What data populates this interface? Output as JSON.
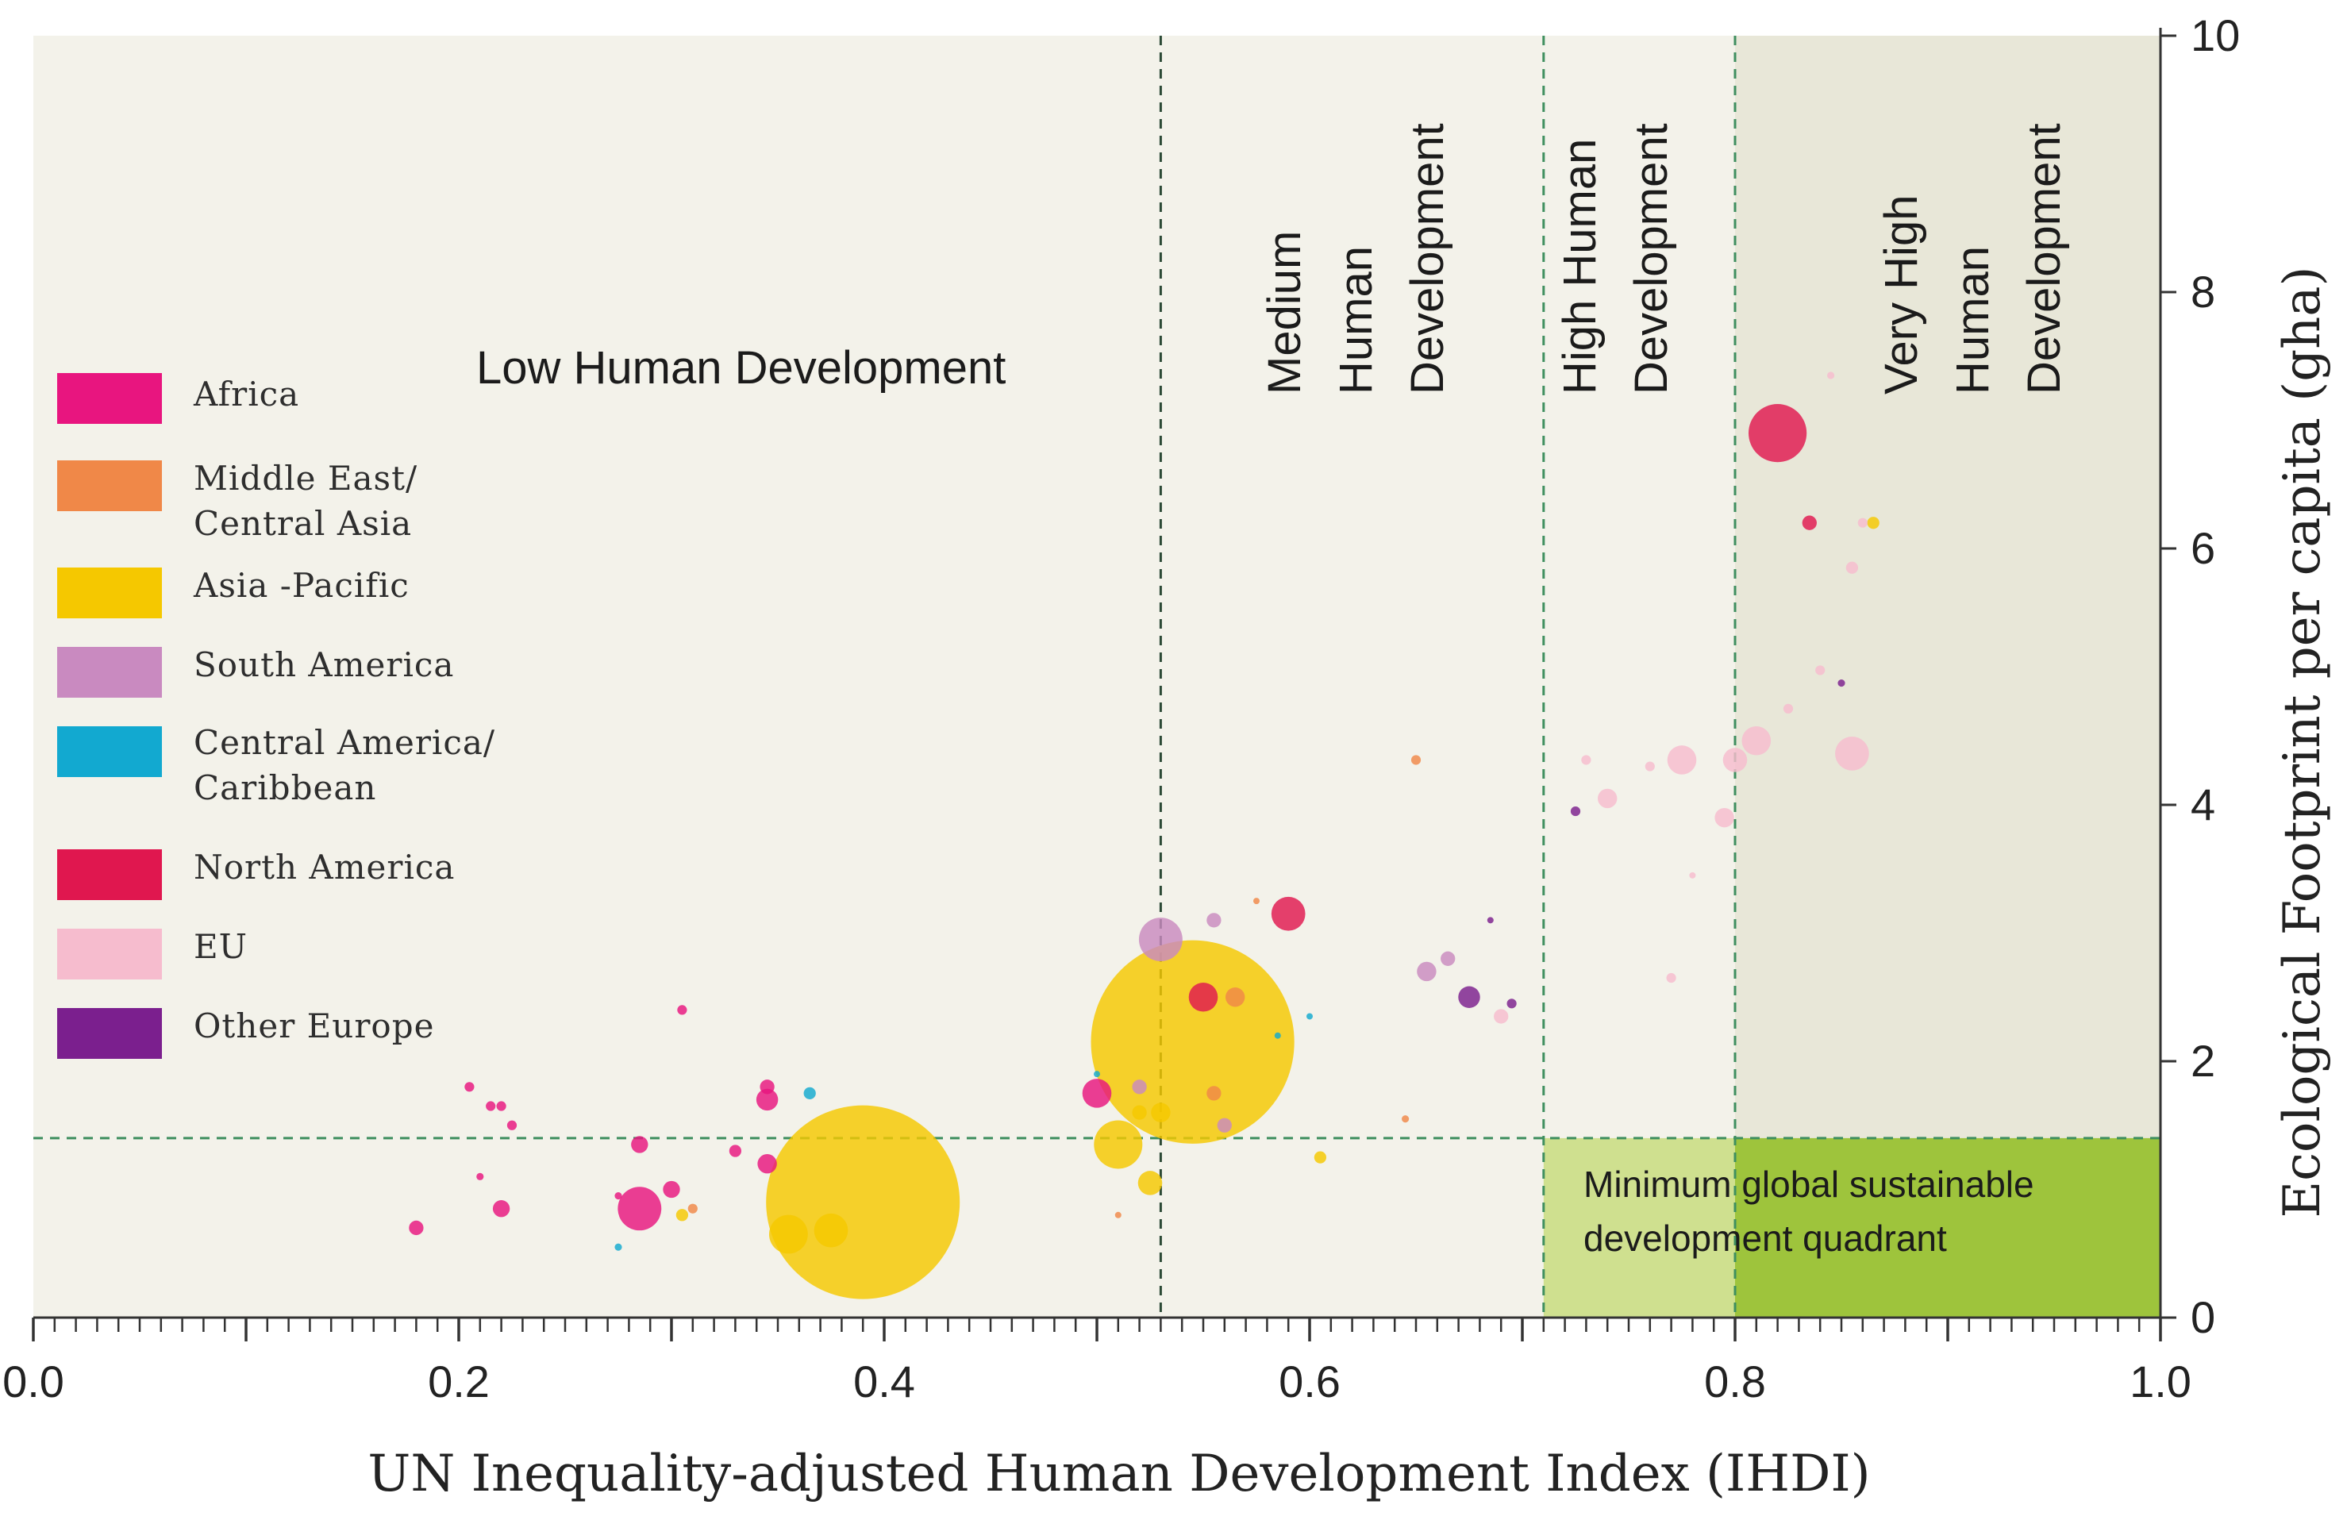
{
  "colors": {
    "background_zone": "#f3f2ea",
    "very_high_zone": "#e8e7d8",
    "quadrant_high": "#cfe08f",
    "quadrant_very_high": "#9ec43c",
    "guide_line": "#3f8f5f"
  },
  "zones": [
    {
      "name": "low",
      "lines": [
        "Low Human Development"
      ],
      "orientation": "horizontal"
    },
    {
      "name": "medium",
      "lines": [
        "Medium",
        "Human",
        "Development"
      ],
      "orientation": "vertical"
    },
    {
      "name": "high",
      "lines": [
        "High Human",
        "Development"
      ],
      "orientation": "vertical"
    },
    {
      "name": "very-high",
      "lines": [
        "Very High",
        "Human",
        "Development"
      ],
      "orientation": "vertical"
    }
  ],
  "quadrant_label_lines": [
    "Minimum global sustainable",
    "development quadrant"
  ],
  "legend": [
    {
      "label": "Africa",
      "color": "#e8157f"
    },
    {
      "label": "Middle East/\nCentral Asia",
      "color": "#f08848"
    },
    {
      "label": "Asia -Pacific",
      "color": "#f5c800"
    },
    {
      "label": "South America",
      "color": "#c98ac0"
    },
    {
      "label": "Central America/\nCaribbean",
      "color": "#12a9d0"
    },
    {
      "label": "North America",
      "color": "#e0174f"
    },
    {
      "label": "EU",
      "color": "#f6bcce"
    },
    {
      "label": "Other Europe",
      "color": "#7b1f8e"
    }
  ],
  "chart_data": {
    "type": "scatter",
    "title": "",
    "xlabel": "UN Inequality-adjusted Human Development Index (IHDI)",
    "ylabel": "Ecological Footprint per capita (gha)",
    "xlim": [
      0.0,
      1.0
    ],
    "ylim": [
      0,
      10
    ],
    "x_ticks": [
      "0.0",
      "0.2",
      "0.4",
      "0.6",
      "0.8",
      "1.0"
    ],
    "y_ticks": [
      "0",
      "2",
      "4",
      "6",
      "8",
      "10"
    ],
    "thresholds": {
      "ihdi": [
        0.53,
        0.71,
        0.8
      ],
      "footprint": 1.4
    },
    "grid": false,
    "points": [
      {
        "x": 0.39,
        "y": 0.9,
        "size": 40,
        "region": "Asia -Pacific"
      },
      {
        "x": 0.545,
        "y": 2.15,
        "size": 42,
        "region": "Asia -Pacific"
      },
      {
        "x": 0.82,
        "y": 6.9,
        "size": 12,
        "region": "North America"
      },
      {
        "x": 0.59,
        "y": 3.15,
        "size": 7,
        "region": "North America"
      },
      {
        "x": 0.835,
        "y": 6.2,
        "size": 3,
        "region": "North America"
      },
      {
        "x": 0.55,
        "y": 2.5,
        "size": 6,
        "region": "North America"
      },
      {
        "x": 0.53,
        "y": 2.95,
        "size": 9,
        "region": "South America"
      },
      {
        "x": 0.555,
        "y": 3.1,
        "size": 3,
        "region": "South America"
      },
      {
        "x": 0.655,
        "y": 2.7,
        "size": 4,
        "region": "South America"
      },
      {
        "x": 0.665,
        "y": 2.8,
        "size": 3,
        "region": "South America"
      },
      {
        "x": 0.56,
        "y": 1.5,
        "size": 3,
        "region": "South America"
      },
      {
        "x": 0.52,
        "y": 1.8,
        "size": 3,
        "region": "South America"
      },
      {
        "x": 0.675,
        "y": 2.5,
        "size": 4.5,
        "region": "Other Europe"
      },
      {
        "x": 0.695,
        "y": 2.45,
        "size": 2,
        "region": "Other Europe"
      },
      {
        "x": 0.725,
        "y": 3.95,
        "size": 2,
        "region": "Other Europe"
      },
      {
        "x": 0.85,
        "y": 4.95,
        "size": 1.5,
        "region": "Other Europe"
      },
      {
        "x": 0.685,
        "y": 3.1,
        "size": 1,
        "region": "Other Europe"
      },
      {
        "x": 0.855,
        "y": 4.4,
        "size": 7,
        "region": "EU"
      },
      {
        "x": 0.775,
        "y": 4.35,
        "size": 6,
        "region": "EU"
      },
      {
        "x": 0.81,
        "y": 4.5,
        "size": 6,
        "region": "EU"
      },
      {
        "x": 0.8,
        "y": 4.35,
        "size": 5,
        "region": "EU"
      },
      {
        "x": 0.74,
        "y": 4.05,
        "size": 4,
        "region": "EU"
      },
      {
        "x": 0.795,
        "y": 3.9,
        "size": 4,
        "region": "EU"
      },
      {
        "x": 0.825,
        "y": 4.75,
        "size": 2,
        "region": "EU"
      },
      {
        "x": 0.84,
        "y": 5.05,
        "size": 2,
        "region": "EU"
      },
      {
        "x": 0.855,
        "y": 5.85,
        "size": 2.5,
        "region": "EU"
      },
      {
        "x": 0.86,
        "y": 6.2,
        "size": 2,
        "region": "EU"
      },
      {
        "x": 0.845,
        "y": 7.35,
        "size": 1.5,
        "region": "EU"
      },
      {
        "x": 0.73,
        "y": 4.35,
        "size": 2,
        "region": "EU"
      },
      {
        "x": 0.76,
        "y": 4.3,
        "size": 2,
        "region": "EU"
      },
      {
        "x": 0.77,
        "y": 2.65,
        "size": 2,
        "region": "EU"
      },
      {
        "x": 0.69,
        "y": 2.35,
        "size": 3,
        "region": "EU"
      },
      {
        "x": 0.78,
        "y": 3.45,
        "size": 1,
        "region": "EU"
      },
      {
        "x": 0.865,
        "y": 6.2,
        "size": 2.5,
        "region": "Asia -Pacific"
      },
      {
        "x": 0.51,
        "y": 1.35,
        "size": 10,
        "region": "Asia -Pacific"
      },
      {
        "x": 0.355,
        "y": 0.65,
        "size": 8,
        "region": "Asia -Pacific"
      },
      {
        "x": 0.375,
        "y": 0.68,
        "size": 7,
        "region": "Asia -Pacific"
      },
      {
        "x": 0.525,
        "y": 1.05,
        "size": 5,
        "region": "Asia -Pacific"
      },
      {
        "x": 0.53,
        "y": 1.6,
        "size": 4,
        "region": "Asia -Pacific"
      },
      {
        "x": 0.605,
        "y": 1.25,
        "size": 2.5,
        "region": "Asia -Pacific"
      },
      {
        "x": 0.305,
        "y": 0.8,
        "size": 2.5,
        "region": "Asia -Pacific"
      },
      {
        "x": 0.52,
        "y": 1.6,
        "size": 3,
        "region": "Asia -Pacific"
      },
      {
        "x": 0.285,
        "y": 0.85,
        "size": 9,
        "region": "Africa"
      },
      {
        "x": 0.3,
        "y": 1.0,
        "size": 3.5,
        "region": "Africa"
      },
      {
        "x": 0.22,
        "y": 0.85,
        "size": 3.5,
        "region": "Africa"
      },
      {
        "x": 0.18,
        "y": 0.7,
        "size": 3,
        "region": "Africa"
      },
      {
        "x": 0.285,
        "y": 1.35,
        "size": 3.5,
        "region": "Africa"
      },
      {
        "x": 0.345,
        "y": 1.7,
        "size": 4.5,
        "region": "Africa"
      },
      {
        "x": 0.345,
        "y": 1.2,
        "size": 4,
        "region": "Africa"
      },
      {
        "x": 0.345,
        "y": 1.8,
        "size": 3,
        "region": "Africa"
      },
      {
        "x": 0.305,
        "y": 2.4,
        "size": 2,
        "region": "Africa"
      },
      {
        "x": 0.5,
        "y": 1.75,
        "size": 6,
        "region": "Africa"
      },
      {
        "x": 0.215,
        "y": 1.65,
        "size": 2,
        "region": "Africa"
      },
      {
        "x": 0.22,
        "y": 1.65,
        "size": 2,
        "region": "Africa"
      },
      {
        "x": 0.205,
        "y": 1.8,
        "size": 2,
        "region": "Africa"
      },
      {
        "x": 0.225,
        "y": 1.5,
        "size": 2,
        "region": "Africa"
      },
      {
        "x": 0.21,
        "y": 1.1,
        "size": 1.5,
        "region": "Africa"
      },
      {
        "x": 0.33,
        "y": 1.3,
        "size": 2.5,
        "region": "Africa"
      },
      {
        "x": 0.275,
        "y": 0.95,
        "size": 1.5,
        "region": "Africa"
      },
      {
        "x": 0.31,
        "y": 0.85,
        "size": 2,
        "region": "Middle East/\nCentral Asia"
      },
      {
        "x": 0.555,
        "y": 1.75,
        "size": 3,
        "region": "Middle East/\nCentral Asia"
      },
      {
        "x": 0.565,
        "y": 2.5,
        "size": 4,
        "region": "Middle East/\nCentral Asia"
      },
      {
        "x": 0.65,
        "y": 4.35,
        "size": 2,
        "region": "Middle East/\nCentral Asia"
      },
      {
        "x": 0.645,
        "y": 1.55,
        "size": 1.5,
        "region": "Middle East/\nCentral Asia"
      },
      {
        "x": 0.575,
        "y": 3.25,
        "size": 1,
        "region": "Middle East/\nCentral Asia"
      },
      {
        "x": 0.51,
        "y": 0.8,
        "size": 1,
        "region": "Middle East/\nCentral Asia"
      },
      {
        "x": 0.365,
        "y": 1.75,
        "size": 2.5,
        "region": "Central America/\nCaribbean"
      },
      {
        "x": 0.275,
        "y": 0.55,
        "size": 1.5,
        "region": "Central America/\nCaribbean"
      },
      {
        "x": 0.6,
        "y": 2.35,
        "size": 1,
        "region": "Central America/\nCaribbean"
      },
      {
        "x": 0.585,
        "y": 2.2,
        "size": 1,
        "region": "Central America/\nCaribbean"
      },
      {
        "x": 0.5,
        "y": 1.9,
        "size": 1,
        "region": "Central America/\nCaribbean"
      }
    ]
  },
  "axis_labels": {
    "x_title": "UN Inequality-adjusted Human Development Index (IHDI)",
    "y_title": "Ecological Footprint per capita (gha)"
  }
}
